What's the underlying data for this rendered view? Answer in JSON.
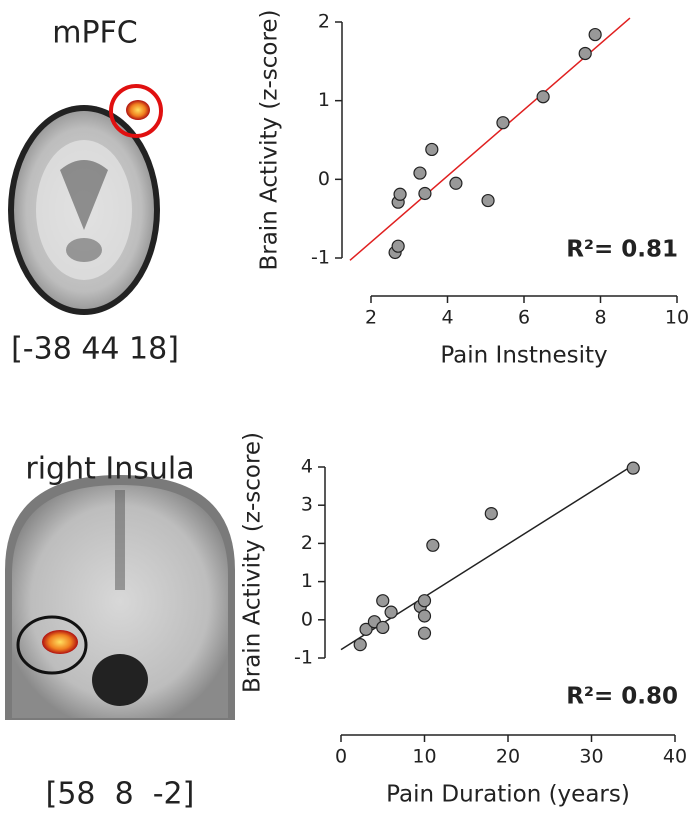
{
  "regions": [
    {
      "label": "mPFC",
      "coords": "[-38 44 18]"
    },
    {
      "label": "right Insula",
      "coords": "[58  8  -2]"
    }
  ],
  "chart_data": [
    {
      "type": "scatter",
      "x_label": "Pain Instnesity",
      "y_label": "Brain Activity (z-score)",
      "annotation": "R²= 0.81",
      "x": [
        2.63,
        2.71,
        2.71,
        2.76,
        3.28,
        3.41,
        3.59,
        4.22,
        5.06,
        5.45,
        6.5,
        7.6,
        7.86
      ],
      "y": [
        -0.93,
        -0.85,
        -0.29,
        -0.19,
        0.08,
        -0.18,
        0.38,
        -0.05,
        -0.27,
        0.72,
        1.05,
        1.6,
        1.84
      ],
      "color": "#999999",
      "fit_color": "#e02020",
      "fit_line": {
        "x": [
          1.45,
          8.77
        ],
        "y": [
          -1.03,
          2.05
        ]
      },
      "xlim": [
        2,
        10
      ],
      "ylim": [
        -1,
        2
      ],
      "xticks": [
        2,
        4,
        6,
        8,
        10
      ],
      "yticks": [
        -1,
        0,
        1,
        2
      ]
    },
    {
      "type": "scatter",
      "x_label": "Pain Duration (years)",
      "y_label": "Brain Activity (z-score)",
      "annotation": "R²= 0.80",
      "x": [
        2.3,
        3,
        4,
        5,
        5,
        6,
        9.5,
        10,
        10,
        10,
        11,
        18,
        35
      ],
      "y": [
        -0.65,
        -0.25,
        -0.05,
        -0.2,
        0.5,
        0.2,
        0.35,
        0.1,
        0.5,
        -0.35,
        1.95,
        2.78,
        3.97
      ],
      "color": "#999999",
      "fit_color": "#222222",
      "fit_line": {
        "x": [
          0,
          35
        ],
        "y": [
          -0.78,
          4.05
        ]
      },
      "xlim": [
        0,
        40
      ],
      "ylim": [
        -1,
        4
      ],
      "xticks": [
        0,
        10,
        20,
        30,
        40
      ],
      "yticks": [
        -1,
        0,
        1,
        2,
        3,
        4
      ]
    }
  ]
}
